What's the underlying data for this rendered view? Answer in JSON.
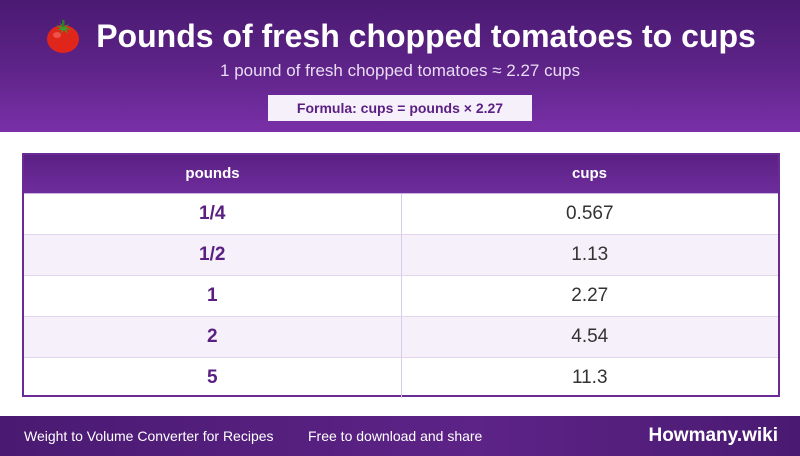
{
  "header": {
    "title": "Pounds of fresh chopped tomatoes to cups",
    "icon": "tomato-icon",
    "subtitle": "1 pound of fresh chopped tomatoes ≈ 2.27 cups",
    "formula": "Formula: cups = pounds × 2.27"
  },
  "table": {
    "headers": [
      "pounds",
      "cups"
    ],
    "rows": [
      {
        "pounds": "1/4",
        "cups": "0.567"
      },
      {
        "pounds": "1/2",
        "cups": "1.13"
      },
      {
        "pounds": "1",
        "cups": "2.27"
      },
      {
        "pounds": "2",
        "cups": "4.54"
      },
      {
        "pounds": "5",
        "cups": "11.3"
      }
    ]
  },
  "footer": {
    "left": "Weight to Volume Converter for Recipes",
    "middle": "Free to download and share",
    "brand": "Howmany.wiki"
  },
  "colors": {
    "brand_purple": "#5d2387",
    "accent_text": "#5a1f82",
    "alt_row": "#f5f0fa"
  }
}
